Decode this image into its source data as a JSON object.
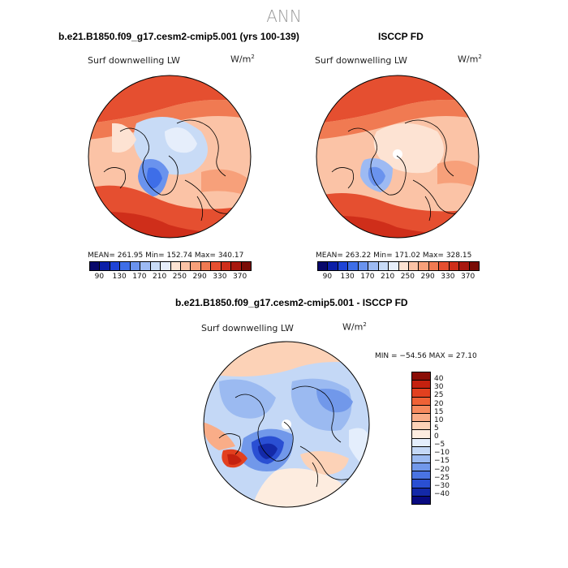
{
  "page_title": "ANN",
  "panels": [
    {
      "title": "b.e21.B1850.f09_g17.cesm2-cmip5.001 (yrs 100-139)",
      "field_label": "Surf downwelling LW",
      "units": "W/m",
      "units_sup": "2",
      "stats": "MEAN= 261.95   Min= 152.74   Max= 340.17"
    },
    {
      "title": "ISCCP FD",
      "field_label": "Surf downwelling LW",
      "units": "W/m",
      "units_sup": "2",
      "stats": "MEAN= 263.22   Min= 171.02   Max= 328.15"
    },
    {
      "title": "b.e21.B1850.f09_g17.cesm2-cmip5.001 - ISCCP FD",
      "field_label": "Surf downwelling LW",
      "units": "W/m",
      "units_sup": "2",
      "stats": "MIN = −54.56  MAX =  27.10"
    }
  ],
  "abs_colorbar": {
    "labels": [
      "90",
      "130",
      "170",
      "210",
      "250",
      "290",
      "330",
      "370"
    ],
    "colors": [
      "#08086b",
      "#0c1fa8",
      "#1f44d6",
      "#3e6ee8",
      "#6a93ee",
      "#9dbaf3",
      "#c8dbf6",
      "#e6eefb",
      "#fde3d3",
      "#fbc3a6",
      "#f7a07a",
      "#f07a52",
      "#e54f30",
      "#cf2e1a",
      "#a8180f",
      "#7a0c06"
    ]
  },
  "diff_colorbar": {
    "labels": [
      "40",
      "30",
      "25",
      "20",
      "15",
      "10",
      "5",
      "0",
      "−5",
      "−10",
      "−15",
      "−20",
      "−25",
      "−30",
      "−40"
    ],
    "colors": [
      "#8a0d06",
      "#c4210f",
      "#e2401f",
      "#ef6236",
      "#f68a5e",
      "#f9ad88",
      "#fcd2b7",
      "#fdecdf",
      "#e4eefc",
      "#c4d8f6",
      "#9bbaf1",
      "#7198ea",
      "#4a74e3",
      "#2a4fd3",
      "#1329a8",
      "#080a80"
    ]
  },
  "icons": {
    "map": "polar-stereographic-map-icon"
  }
}
